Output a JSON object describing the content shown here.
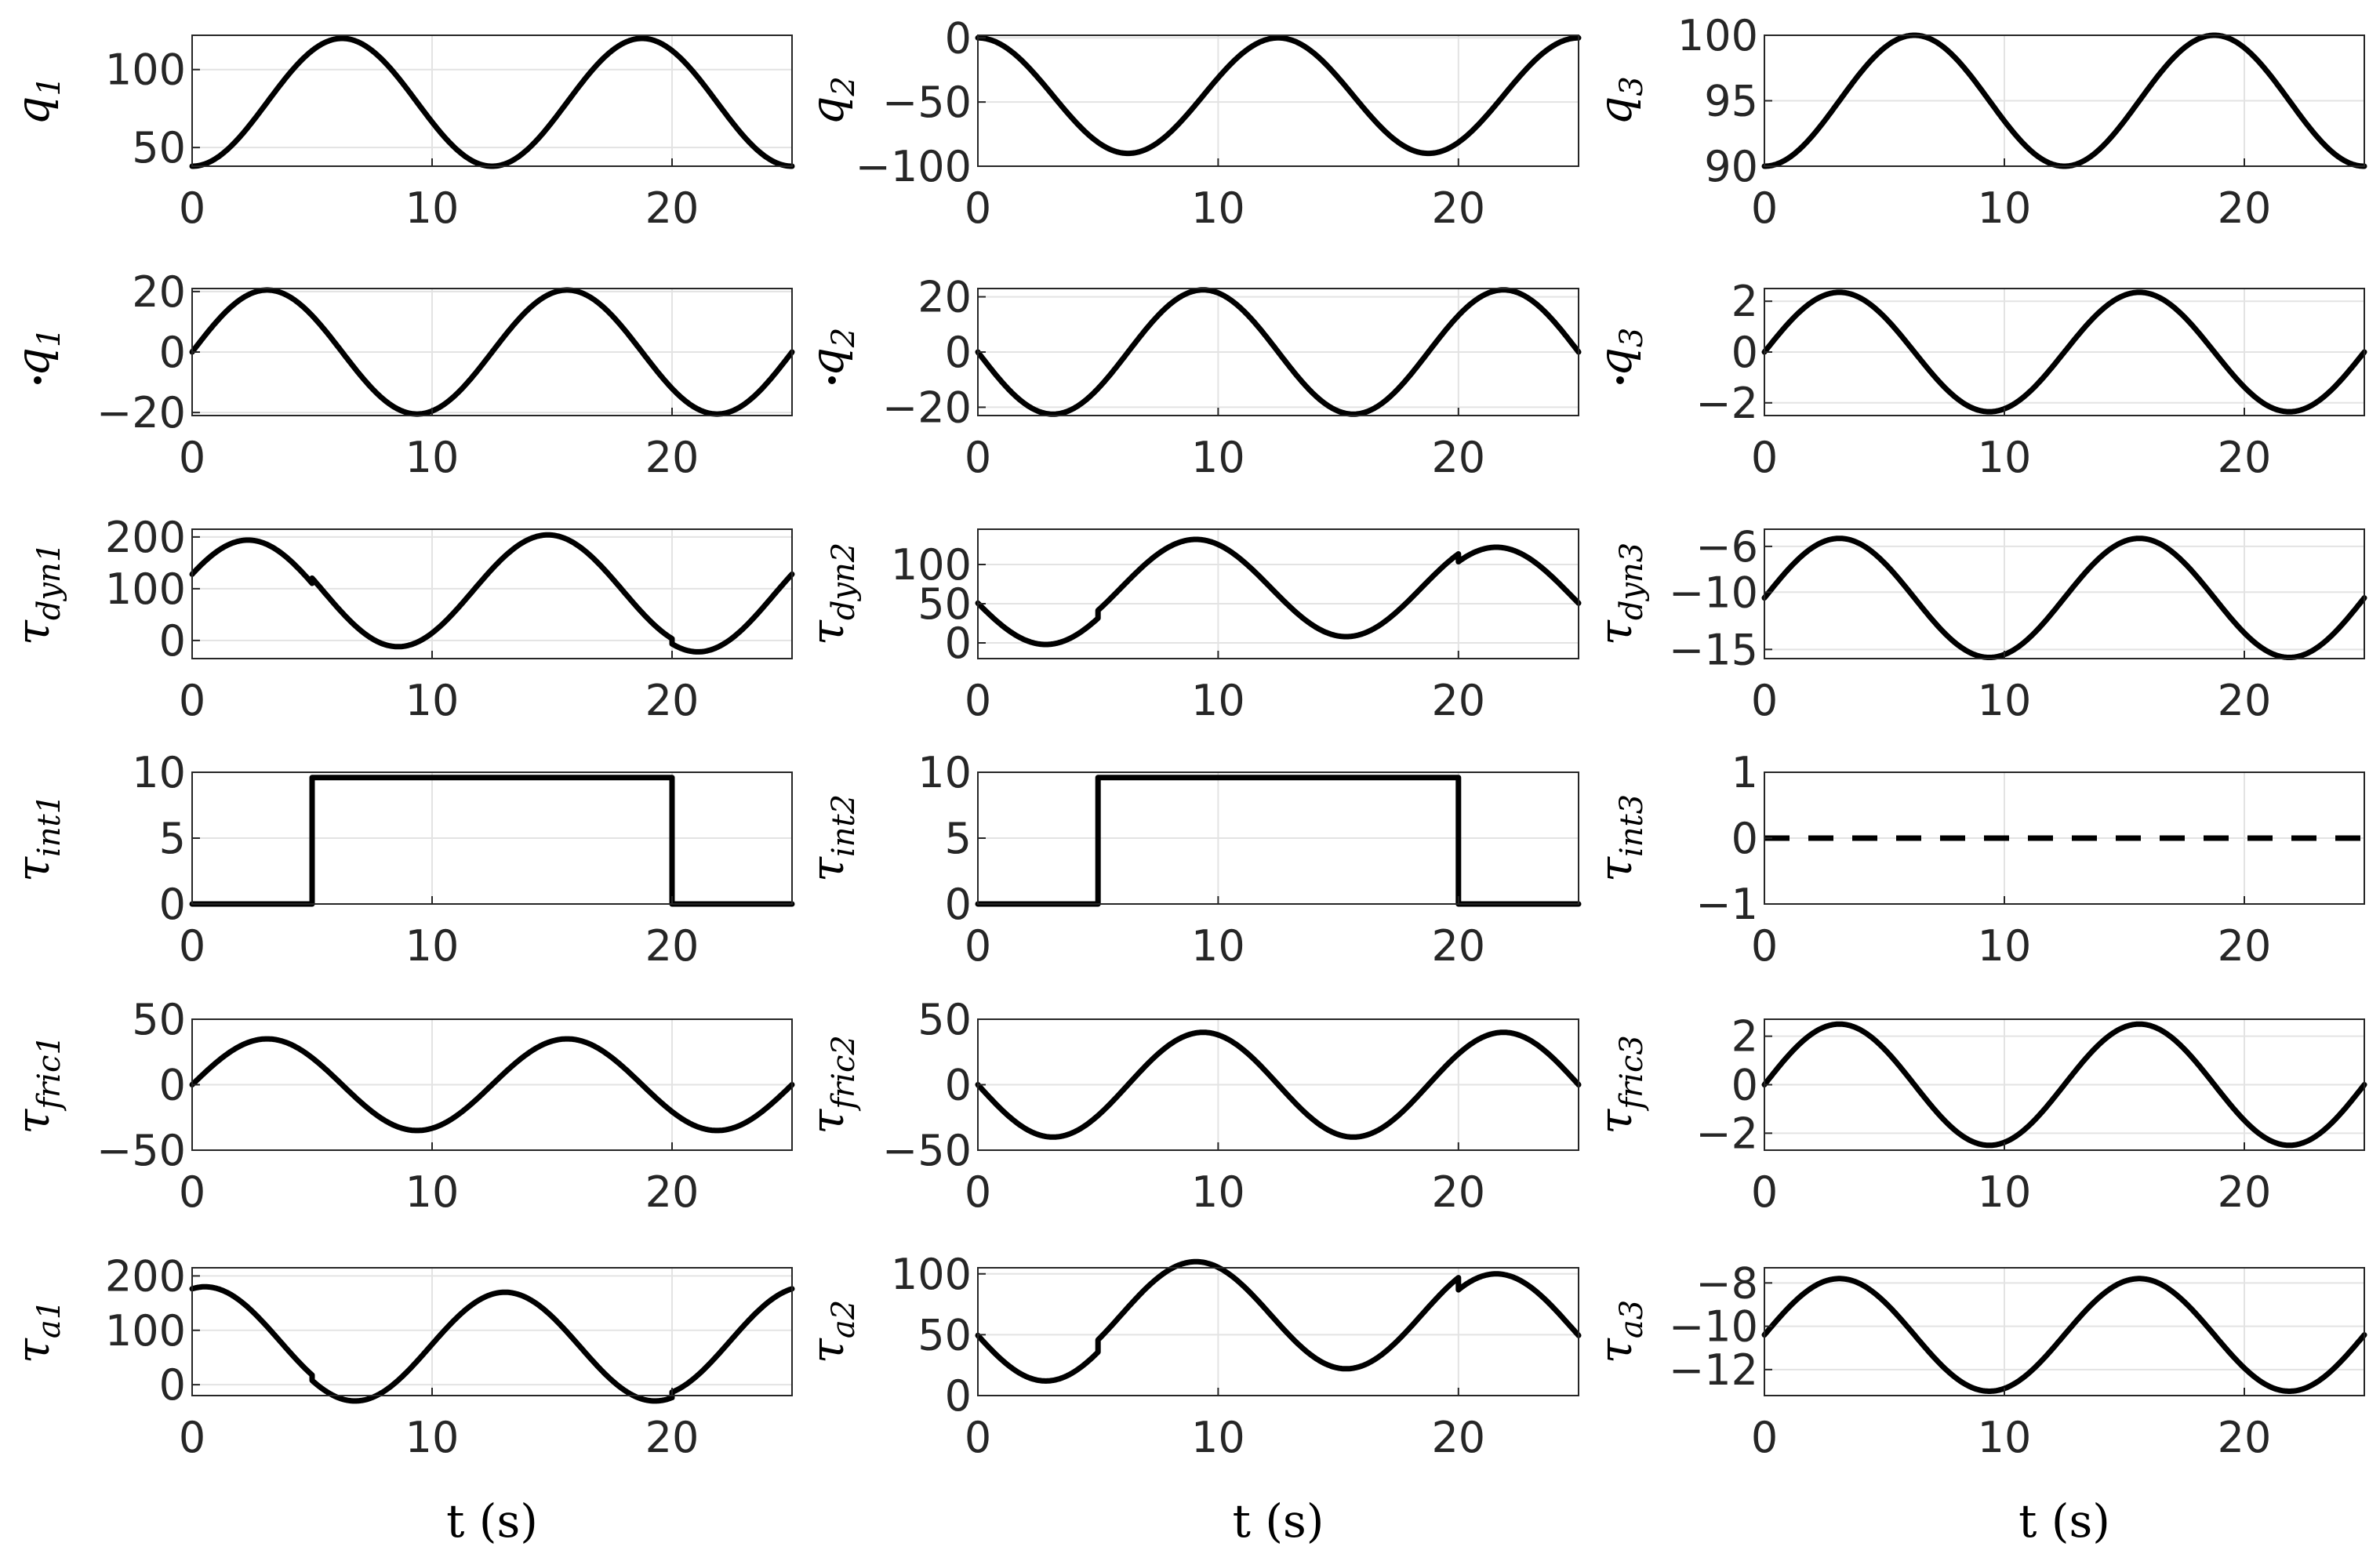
{
  "chart_data": [
    {
      "id": "q1",
      "type": "line",
      "ylabel_main": "q",
      "ylabel_sub": "1",
      "dot": false,
      "ylim": [
        38,
        122
      ],
      "yticks": [
        50,
        100
      ],
      "xlim": [
        0,
        25
      ],
      "xticks": [
        0,
        10,
        20
      ],
      "xlabel": "",
      "grid": true,
      "series": [
        {
          "kind": "cos",
          "offset": 79,
          "amp": -41,
          "period": 12.5,
          "steps": []
        }
      ]
    },
    {
      "id": "q2",
      "type": "line",
      "ylabel_main": "q",
      "ylabel_sub": "2",
      "dot": false,
      "ylim": [
        -100,
        2
      ],
      "yticks": [
        -100,
        -50,
        0
      ],
      "xlim": [
        0,
        25
      ],
      "xticks": [
        0,
        10,
        20
      ],
      "xlabel": "",
      "grid": true,
      "series": [
        {
          "kind": "cos",
          "offset": -45,
          "amp": 45,
          "period": 12.5,
          "steps": []
        }
      ]
    },
    {
      "id": "q3",
      "type": "line",
      "ylabel_main": "q",
      "ylabel_sub": "3",
      "dot": false,
      "ylim": [
        90,
        100
      ],
      "yticks": [
        90,
        95,
        100
      ],
      "xlim": [
        0,
        25
      ],
      "xticks": [
        0,
        10,
        20
      ],
      "xlabel": "",
      "grid": true,
      "series": [
        {
          "kind": "cos",
          "offset": 95,
          "amp": -5,
          "period": 12.5,
          "steps": []
        }
      ]
    },
    {
      "id": "qd1",
      "type": "line",
      "ylabel_main": "q",
      "ylabel_sub": "1",
      "dot": true,
      "ylim": [
        -21,
        21
      ],
      "yticks": [
        -20,
        0,
        20
      ],
      "xlim": [
        0,
        25
      ],
      "xticks": [
        0,
        10,
        20
      ],
      "xlabel": "",
      "grid": true,
      "series": [
        {
          "kind": "sin",
          "offset": 0,
          "amp": 20.5,
          "period": 12.5,
          "steps": []
        }
      ]
    },
    {
      "id": "qd2",
      "type": "line",
      "ylabel_main": "q",
      "ylabel_sub": "2",
      "dot": true,
      "ylim": [
        -23,
        23
      ],
      "yticks": [
        -20,
        0,
        20
      ],
      "xlim": [
        0,
        25
      ],
      "xticks": [
        0,
        10,
        20
      ],
      "xlabel": "",
      "grid": true,
      "series": [
        {
          "kind": "sin",
          "offset": 0,
          "amp": -22.5,
          "period": 12.5,
          "steps": []
        }
      ]
    },
    {
      "id": "qd3",
      "type": "line",
      "ylabel_main": "q",
      "ylabel_sub": "3",
      "dot": true,
      "ylim": [
        -2.5,
        2.5
      ],
      "yticks": [
        -2,
        0,
        2
      ],
      "xlim": [
        0,
        25
      ],
      "xticks": [
        0,
        10,
        20
      ],
      "xlabel": "",
      "grid": true,
      "series": [
        {
          "kind": "sin",
          "offset": 0,
          "amp": 2.35,
          "period": 12.5,
          "steps": []
        }
      ]
    },
    {
      "id": "tdyn1",
      "type": "line",
      "ylabel_main": "τ",
      "ylabel_sub": "dyn1",
      "dot": false,
      "ylim": [
        -35,
        215
      ],
      "yticks": [
        0,
        100,
        200
      ],
      "xlim": [
        0,
        25
      ],
      "xticks": [
        0,
        10,
        20
      ],
      "xlabel": "",
      "grid": true,
      "series": [
        {
          "kind": "sin",
          "offset": 86,
          "amp": 108,
          "period": 12.5,
          "phase": 0.4,
          "steps": [
            [
              5,
              10
            ],
            [
              20,
              -10
            ]
          ]
        }
      ]
    },
    {
      "id": "tdyn2",
      "type": "line",
      "ylabel_main": "τ",
      "ylabel_sub": "dyn2",
      "dot": false,
      "ylim": [
        -20,
        145
      ],
      "yticks": [
        0,
        50,
        100
      ],
      "xlim": [
        0,
        25
      ],
      "xticks": [
        0,
        10,
        20
      ],
      "xlabel": "",
      "grid": true,
      "series": [
        {
          "kind": "sin",
          "offset": 60,
          "amp": -62,
          "period": 12.5,
          "phase": 0.15,
          "steps": [
            [
              5,
              10
            ],
            [
              20,
              -10
            ]
          ]
        }
      ]
    },
    {
      "id": "tdyn3",
      "type": "line",
      "ylabel_main": "τ",
      "ylabel_sub": "dyn3",
      "dot": false,
      "ylim": [
        -15.8,
        -4.5
      ],
      "yticks": [
        -15,
        -10,
        -6
      ],
      "xlim": [
        0,
        25
      ],
      "xticks": [
        0,
        10,
        20
      ],
      "xlabel": "",
      "grid": true,
      "series": [
        {
          "kind": "sin",
          "offset": -10.5,
          "amp": 5.2,
          "period": 12.5,
          "steps": []
        }
      ]
    },
    {
      "id": "tint1",
      "type": "line",
      "ylabel_main": "τ",
      "ylabel_sub": "int1",
      "dot": false,
      "ylim": [
        0,
        10
      ],
      "yticks": [
        0,
        5,
        10
      ],
      "xlim": [
        0,
        25
      ],
      "xticks": [
        0,
        10,
        20
      ],
      "xlabel": "",
      "grid": true,
      "series": [
        {
          "kind": "pulse",
          "low": 0,
          "high": 9.6,
          "t_on": 5,
          "t_off": 20
        }
      ]
    },
    {
      "id": "tint2",
      "type": "line",
      "ylabel_main": "τ",
      "ylabel_sub": "int2",
      "dot": false,
      "ylim": [
        0,
        10
      ],
      "yticks": [
        0,
        5,
        10
      ],
      "xlim": [
        0,
        25
      ],
      "xticks": [
        0,
        10,
        20
      ],
      "xlabel": "",
      "grid": true,
      "series": [
        {
          "kind": "pulse",
          "low": 0,
          "high": 9.6,
          "t_on": 5,
          "t_off": 20
        }
      ]
    },
    {
      "id": "tint3",
      "type": "line",
      "ylabel_main": "τ",
      "ylabel_sub": "int3",
      "dot": false,
      "ylim": [
        -1,
        1
      ],
      "yticks": [
        -1,
        0,
        1
      ],
      "xlim": [
        0,
        25
      ],
      "xticks": [
        0,
        10,
        20
      ],
      "xlabel": "",
      "grid": true,
      "series": [
        {
          "kind": "const",
          "value": 0,
          "dashed": true
        }
      ]
    },
    {
      "id": "tfric1",
      "type": "line",
      "ylabel_main": "τ",
      "ylabel_sub": "fric1",
      "dot": false,
      "ylim": [
        -50,
        50
      ],
      "yticks": [
        -50,
        0,
        50
      ],
      "xlim": [
        0,
        25
      ],
      "xticks": [
        0,
        10,
        20
      ],
      "xlabel": "",
      "grid": true,
      "series": [
        {
          "kind": "sin",
          "offset": 0,
          "amp": 35,
          "period": 12.5,
          "steps": []
        }
      ]
    },
    {
      "id": "tfric2",
      "type": "line",
      "ylabel_main": "τ",
      "ylabel_sub": "fric2",
      "dot": false,
      "ylim": [
        -50,
        50
      ],
      "yticks": [
        -50,
        0,
        50
      ],
      "xlim": [
        0,
        25
      ],
      "xticks": [
        0,
        10,
        20
      ],
      "xlabel": "",
      "grid": true,
      "series": [
        {
          "kind": "sin",
          "offset": 0,
          "amp": -40,
          "period": 12.5,
          "steps": []
        }
      ]
    },
    {
      "id": "tfric3",
      "type": "line",
      "ylabel_main": "τ",
      "ylabel_sub": "fric3",
      "dot": false,
      "ylim": [
        -2.7,
        2.7
      ],
      "yticks": [
        -2,
        0,
        2
      ],
      "xlim": [
        0,
        25
      ],
      "xticks": [
        0,
        10,
        20
      ],
      "xlabel": "",
      "grid": true,
      "series": [
        {
          "kind": "sin",
          "offset": 0,
          "amp": 2.5,
          "period": 12.5,
          "steps": []
        }
      ]
    },
    {
      "id": "ta1",
      "type": "line",
      "ylabel_main": "τ",
      "ylabel_sub": "a1",
      "dot": false,
      "ylim": [
        -20,
        215
      ],
      "yticks": [
        0,
        100,
        200
      ],
      "xlim": [
        0,
        25
      ],
      "xticks": [
        0,
        10,
        20
      ],
      "xlabel": "t (s)",
      "grid": true,
      "series": [
        {
          "kind": "sin",
          "offset": 80,
          "amp": 100,
          "period": 12.5,
          "phase": 1.3,
          "steps": [
            [
              5,
              -10
            ],
            [
              20,
              10
            ]
          ]
        }
      ]
    },
    {
      "id": "ta2",
      "type": "line",
      "ylabel_main": "τ",
      "ylabel_sub": "a2",
      "dot": false,
      "ylim": [
        0,
        105
      ],
      "yticks": [
        0,
        50,
        100
      ],
      "xlim": [
        0,
        25
      ],
      "xticks": [
        0,
        10,
        20
      ],
      "xlabel": "t (s)",
      "grid": true,
      "series": [
        {
          "kind": "sin",
          "offset": 56,
          "amp": -44,
          "period": 12.5,
          "phase": 0.15,
          "steps": [
            [
              5,
              10
            ],
            [
              20,
              -10
            ]
          ]
        }
      ]
    },
    {
      "id": "ta3",
      "type": "line",
      "ylabel_main": "τ",
      "ylabel_sub": "a3",
      "dot": false,
      "ylim": [
        -13.2,
        -7.3
      ],
      "yticks": [
        -12,
        -10,
        -8
      ],
      "xlim": [
        0,
        25
      ],
      "xticks": [
        0,
        10,
        20
      ],
      "xlabel": "t (s)",
      "grid": true,
      "series": [
        {
          "kind": "sin",
          "offset": -10.4,
          "amp": 2.6,
          "period": 12.5,
          "steps": []
        }
      ]
    }
  ]
}
